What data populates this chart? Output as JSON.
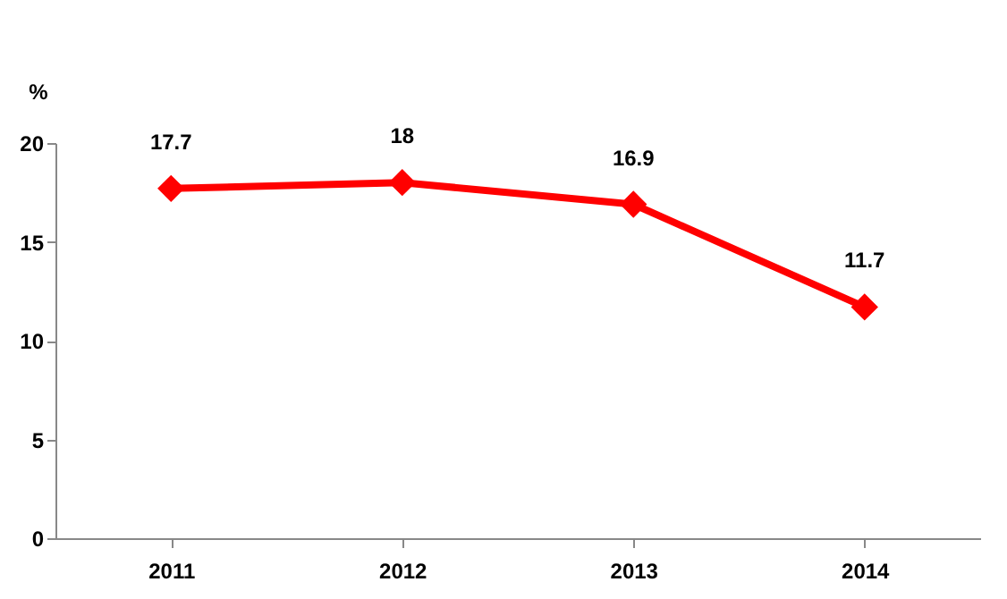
{
  "chart_data": {
    "type": "line",
    "ylabel": "%",
    "categories": [
      "2011",
      "2012",
      "2013",
      "2014"
    ],
    "series": [
      {
        "color": "#ff0000",
        "values": [
          17.7,
          18,
          16.9,
          11.7
        ]
      }
    ],
    "ylim": [
      0,
      20
    ],
    "yticks": [
      0,
      5,
      10,
      15,
      20
    ],
    "grid": false,
    "legend": false,
    "marker": "diamond",
    "line_style": "solid",
    "data_labels": true
  }
}
